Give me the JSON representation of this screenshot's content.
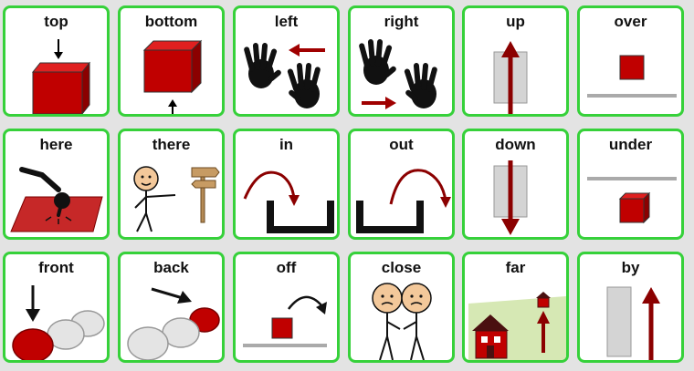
{
  "colors": {
    "card_border": "#36d13a",
    "symbol_red": "#c00000",
    "dark_red": "#8b0000",
    "gray": "#cccccc"
  },
  "cards": [
    {
      "label": "top",
      "icon": "cube-arrow-top-icon"
    },
    {
      "label": "bottom",
      "icon": "cube-arrow-bottom-icon"
    },
    {
      "label": "left",
      "icon": "hands-arrow-left-icon"
    },
    {
      "label": "right",
      "icon": "hands-arrow-right-icon"
    },
    {
      "label": "up",
      "icon": "arrow-up-icon"
    },
    {
      "label": "over",
      "icon": "square-over-line-icon"
    },
    {
      "label": "here",
      "icon": "pointing-here-icon"
    },
    {
      "label": "there",
      "icon": "person-pointing-signpost-icon"
    },
    {
      "label": "in",
      "icon": "arrow-into-container-icon"
    },
    {
      "label": "out",
      "icon": "arrow-out-of-container-icon"
    },
    {
      "label": "down",
      "icon": "arrow-down-icon"
    },
    {
      "label": "under",
      "icon": "cube-under-line-icon"
    },
    {
      "label": "front",
      "icon": "circles-front-icon"
    },
    {
      "label": "back",
      "icon": "circles-back-icon"
    },
    {
      "label": "off",
      "icon": "square-off-line-icon"
    },
    {
      "label": "close",
      "icon": "two-people-close-icon"
    },
    {
      "label": "far",
      "icon": "house-far-icon"
    },
    {
      "label": "by",
      "icon": "arrow-by-bar-icon"
    }
  ]
}
